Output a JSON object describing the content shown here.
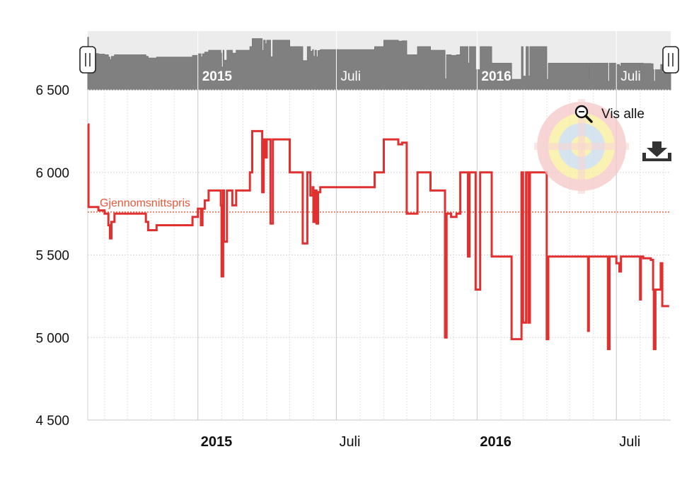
{
  "chart_data": {
    "type": "line",
    "title": "",
    "xlabel": "",
    "ylabel": "",
    "ylim": [
      4500,
      6500
    ],
    "yticks": [
      4500,
      5000,
      5500,
      6000,
      6500
    ],
    "ytick_labels": [
      "4 500",
      "5 000",
      "5 500",
      "6 000",
      "6 500"
    ],
    "xlim": [
      "2014-08-10",
      "2016-09-10"
    ],
    "xtick_labels": [
      {
        "date": "2015-01-01",
        "label": "2015",
        "bold": true
      },
      {
        "date": "2015-07-01",
        "label": "Juli",
        "bold": false
      },
      {
        "date": "2016-01-01",
        "label": "2016",
        "bold": true
      },
      {
        "date": "2016-07-01",
        "label": "Juli",
        "bold": false
      }
    ],
    "grid": true,
    "average": {
      "label": "Gjennomsnittspris",
      "value": 5760,
      "color": "#e65a3a"
    },
    "series": [
      {
        "color": "#e03030",
        "step": true,
        "points": [
          [
            "2014-08-10",
            6290
          ],
          [
            "2014-08-11",
            5790
          ],
          [
            "2014-08-24",
            5770
          ],
          [
            "2014-09-01",
            5750
          ],
          [
            "2014-09-06",
            5680
          ],
          [
            "2014-09-08",
            5600
          ],
          [
            "2014-09-10",
            5700
          ],
          [
            "2014-09-14",
            5750
          ],
          [
            "2014-10-25",
            5700
          ],
          [
            "2014-10-28",
            5650
          ],
          [
            "2014-11-08",
            5680
          ],
          [
            "2014-12-25",
            5730
          ],
          [
            "2015-01-01",
            5780
          ],
          [
            "2015-01-05",
            5680
          ],
          [
            "2015-01-07",
            5780
          ],
          [
            "2015-01-10",
            5830
          ],
          [
            "2015-01-15",
            5890
          ],
          [
            "2015-01-31",
            5800
          ],
          [
            "2015-02-01",
            5370
          ],
          [
            "2015-02-03",
            5890
          ],
          [
            "2015-02-04",
            5580
          ],
          [
            "2015-02-08",
            5890
          ],
          [
            "2015-02-15",
            5800
          ],
          [
            "2015-02-20",
            5890
          ],
          [
            "2015-03-10",
            6000
          ],
          [
            "2015-03-13",
            6250
          ],
          [
            "2015-03-26",
            5880
          ],
          [
            "2015-03-28",
            6200
          ],
          [
            "2015-03-30",
            6090
          ],
          [
            "2015-04-01",
            6200
          ],
          [
            "2015-04-06",
            5690
          ],
          [
            "2015-04-09",
            6200
          ],
          [
            "2015-05-01",
            6000
          ],
          [
            "2015-05-18",
            5570
          ],
          [
            "2015-05-24",
            6000
          ],
          [
            "2015-05-28",
            5860
          ],
          [
            "2015-05-31",
            5910
          ],
          [
            "2015-06-01",
            5700
          ],
          [
            "2015-06-03",
            5890
          ],
          [
            "2015-06-05",
            5690
          ],
          [
            "2015-06-07",
            5880
          ],
          [
            "2015-06-10",
            5910
          ],
          [
            "2015-08-20",
            6000
          ],
          [
            "2015-09-01",
            6200
          ],
          [
            "2015-09-20",
            6170
          ],
          [
            "2015-09-25",
            6180
          ],
          [
            "2015-10-01",
            5750
          ],
          [
            "2015-10-15",
            6000
          ],
          [
            "2015-11-01",
            5890
          ],
          [
            "2015-11-20",
            5000
          ],
          [
            "2015-11-22",
            5750
          ],
          [
            "2015-11-28",
            5730
          ],
          [
            "2015-12-05",
            5750
          ],
          [
            "2015-12-10",
            6000
          ],
          [
            "2015-12-20",
            5490
          ],
          [
            "2015-12-22",
            6000
          ],
          [
            "2015-12-30",
            5290
          ],
          [
            "2016-01-05",
            6000
          ],
          [
            "2016-01-20",
            5490
          ],
          [
            "2016-02-15",
            4990
          ],
          [
            "2016-02-28",
            6000
          ],
          [
            "2016-03-01",
            5090
          ],
          [
            "2016-03-05",
            6000
          ],
          [
            "2016-03-08",
            5090
          ],
          [
            "2016-03-10",
            6000
          ],
          [
            "2016-04-01",
            4990
          ],
          [
            "2016-04-03",
            5490
          ],
          [
            "2016-05-25",
            5040
          ],
          [
            "2016-05-26",
            5490
          ],
          [
            "2016-06-20",
            4930
          ],
          [
            "2016-06-22",
            5490
          ],
          [
            "2016-07-01",
            5450
          ],
          [
            "2016-07-05",
            5400
          ],
          [
            "2016-07-07",
            5490
          ],
          [
            "2016-08-01",
            5230
          ],
          [
            "2016-08-02",
            5490
          ],
          [
            "2016-08-05",
            5480
          ],
          [
            "2016-08-15",
            5470
          ],
          [
            "2016-08-18",
            5290
          ],
          [
            "2016-08-19",
            4930
          ],
          [
            "2016-08-21",
            5290
          ],
          [
            "2016-08-28",
            5450
          ],
          [
            "2016-08-30",
            5190
          ],
          [
            "2016-09-05",
            5190
          ],
          [
            "2016-09-08",
            5190
          ]
        ]
      }
    ]
  },
  "navigator": {
    "labels": [
      {
        "date": "2015-01-01",
        "label": "2015",
        "bold": true
      },
      {
        "date": "2015-07-01",
        "label": "Juli",
        "bold": false
      },
      {
        "date": "2016-01-01",
        "label": "2016",
        "bold": true
      },
      {
        "date": "2016-07-01",
        "label": "Juli",
        "bold": false
      }
    ]
  },
  "controls": {
    "reset_zoom_label": "Vis alle",
    "reset_zoom_icon": "zoom-out-icon",
    "download_icon": "download-icon"
  },
  "colors": {
    "line": "#e03030",
    "average": "#e65a3a",
    "navigator_fill": "#808080",
    "navigator_bg": "#ececec"
  }
}
